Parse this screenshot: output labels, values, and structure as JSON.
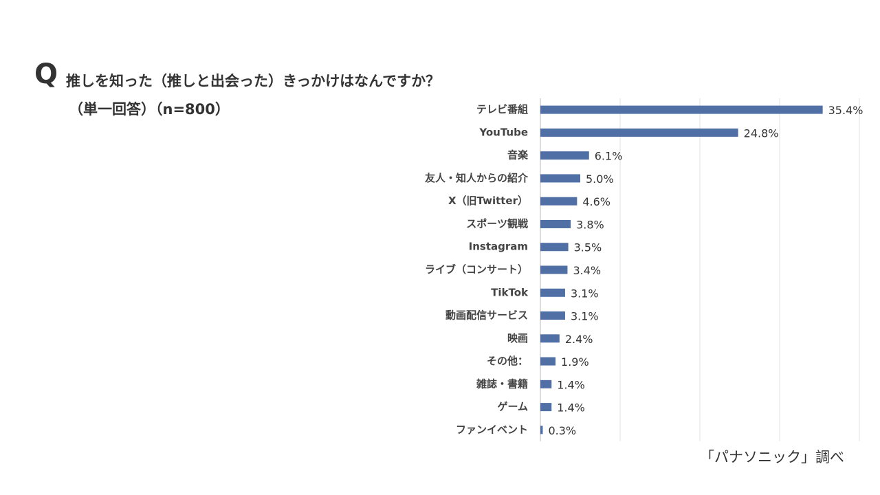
{
  "chart_data": {
    "type": "bar",
    "orientation": "horizontal",
    "question_label": "Q",
    "title": "推しを知った（推しと出会った）きっかけはなんですか？",
    "subtitle": "（単一回答）（n=800）",
    "source": "「パナソニック」調べ",
    "categories": [
      "テレビ番組",
      "YouTube",
      "音楽",
      "友人・知人からの紹介",
      "X（旧Twitter）",
      "スポーツ観戦",
      "Instagram",
      "ライブ（コンサート）",
      "TikTok",
      "動画配信サービス",
      "映画",
      "その他：",
      "雑誌・書籍",
      "ゲーム",
      "ファンイベント"
    ],
    "values": [
      35.4,
      24.8,
      6.1,
      5.0,
      4.6,
      3.8,
      3.5,
      3.4,
      3.1,
      3.1,
      2.4,
      1.9,
      1.4,
      1.4,
      0.3
    ],
    "value_labels": [
      "35.4%",
      "24.8%",
      "6.1%",
      "5.0%",
      "4.6%",
      "3.8%",
      "3.5%",
      "3.4%",
      "3.1%",
      "3.1%",
      "2.4%",
      "1.9%",
      "1.4%",
      "1.4%",
      "0.3%"
    ],
    "color": "#4f6fa5",
    "xlim": [
      0,
      40
    ],
    "xticks": [
      0,
      10,
      20,
      30,
      40
    ],
    "grid": true
  }
}
